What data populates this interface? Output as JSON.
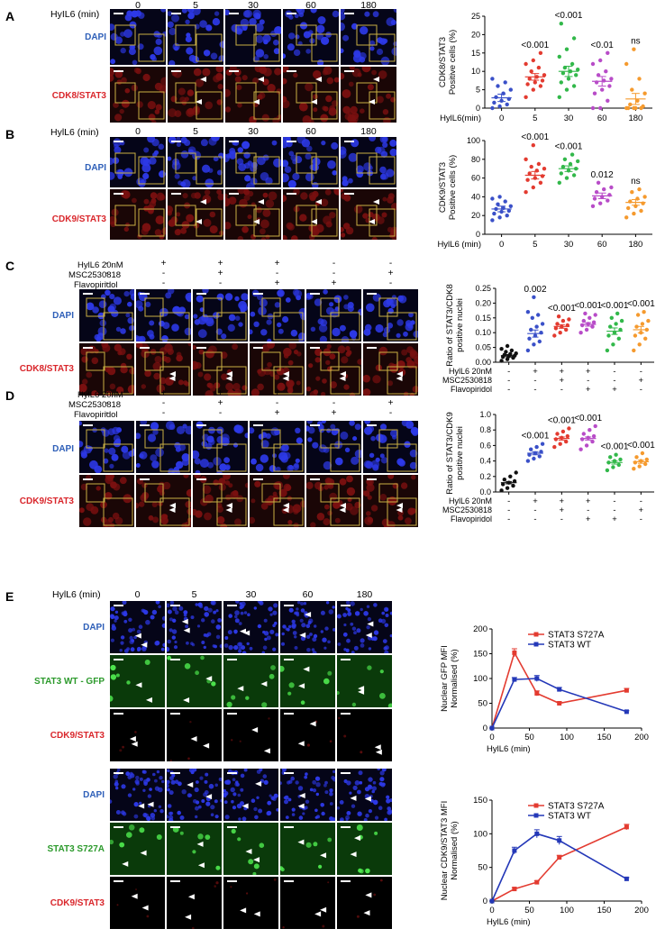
{
  "panels": {
    "A": {
      "letter": "A",
      "time_axis_label": "HyIL6 (min)",
      "times": [
        "0",
        "5",
        "30",
        "60",
        "180"
      ],
      "rows": [
        {
          "label": "DAPI",
          "color": "#2e5fb8",
          "kind": "blue"
        },
        {
          "label": "CDK8/STAT3",
          "color": "#d9262b",
          "kind": "red"
        }
      ],
      "chart_data": {
        "type": "scatter",
        "title": "",
        "ylabel": "CDK8/STAT3 Positive cells (%)",
        "ylabel_lines": [
          "CDK8/STAT3",
          "Positive cells (%)"
        ],
        "xlabel": "HylL6(min)",
        "categories": [
          "0",
          "5",
          "30",
          "60",
          "180"
        ],
        "ylim": [
          0,
          25
        ],
        "yticks": [
          0,
          5,
          10,
          15,
          20,
          25
        ],
        "colors": [
          "#3a50c8",
          "#e33b30",
          "#32b84a",
          "#b84cc8",
          "#f59a2e"
        ],
        "means": [
          2.8,
          8.5,
          10,
          7.3,
          2.5
        ],
        "sem": [
          1.0,
          0.9,
          1.4,
          1.3,
          1.5
        ],
        "points": [
          [
            0,
            0.5,
            1,
            1.5,
            2,
            2.5,
            3,
            4,
            5,
            6,
            7,
            8
          ],
          [
            3,
            5,
            6,
            6.5,
            7,
            7.5,
            8,
            8.5,
            9,
            10,
            11,
            12,
            13,
            15
          ],
          [
            3,
            5,
            6,
            7,
            8,
            9,
            9.5,
            10,
            10.5,
            11,
            12,
            14,
            16,
            19,
            23
          ],
          [
            0,
            0,
            2,
            4,
            5,
            6,
            7,
            7.5,
            8,
            9,
            10,
            12,
            13,
            15
          ],
          [
            0,
            0,
            0,
            0,
            0,
            0.5,
            1,
            2,
            4,
            5,
            8,
            12,
            16
          ]
        ],
        "annotations": [
          "",
          "<0.001",
          "<0.001",
          "<0.01",
          "ns"
        ]
      }
    },
    "B": {
      "letter": "B",
      "time_axis_label": "HylL6 (min)",
      "times": [
        "0",
        "5",
        "30",
        "60",
        "180"
      ],
      "rows": [
        {
          "label": "DAPI",
          "color": "#2e5fb8",
          "kind": "blue"
        },
        {
          "label": "CDK9/STAT3",
          "color": "#d9262b",
          "kind": "red"
        }
      ],
      "chart_data": {
        "type": "scatter",
        "title": "",
        "ylabel": "CDK9/STAT3 Positive cells (%)",
        "ylabel_lines": [
          "CDK9/STAT3",
          "Positive cells (%)"
        ],
        "xlabel": "HylL6 (min)",
        "categories": [
          "0",
          "5",
          "30",
          "60",
          "180"
        ],
        "ylim": [
          0,
          100
        ],
        "yticks": [
          0,
          20,
          40,
          60,
          80,
          100
        ],
        "colors": [
          "#3a50c8",
          "#e33b30",
          "#32b84a",
          "#b84cc8",
          "#f59a2e"
        ],
        "means": [
          27,
          63,
          70,
          41,
          34
        ],
        "sem": [
          3,
          4,
          3,
          3,
          3
        ],
        "points": [
          [
            15,
            18,
            20,
            22,
            24,
            25,
            27,
            28,
            30,
            32,
            35,
            38,
            40
          ],
          [
            45,
            50,
            55,
            58,
            60,
            62,
            65,
            68,
            70,
            72,
            75,
            80,
            95
          ],
          [
            55,
            60,
            63,
            65,
            68,
            70,
            72,
            75,
            78,
            80,
            85
          ],
          [
            30,
            33,
            36,
            38,
            40,
            42,
            45,
            48,
            50,
            55
          ],
          [
            18,
            22,
            25,
            28,
            30,
            33,
            35,
            38,
            40,
            45,
            48
          ]
        ],
        "annotations": [
          "",
          "<0.001",
          "<0.001",
          "0.012",
          "ns"
        ]
      }
    },
    "C": {
      "letter": "C",
      "treatments": [
        "HylL6 20nM",
        "MSC2530818",
        "Flavopiridol"
      ],
      "signs": [
        [
          "-",
          "+",
          "+",
          "+",
          "-",
          "-"
        ],
        [
          "-",
          "-",
          "+",
          "-",
          "-",
          "+"
        ],
        [
          "-",
          "-",
          "-",
          "+",
          "+",
          "-"
        ]
      ],
      "rows": [
        {
          "label": "DAPI",
          "color": "#2e5fb8",
          "kind": "blue"
        },
        {
          "label": "CDK8/STAT3",
          "color": "#d9262b",
          "kind": "red"
        }
      ],
      "chart_data": {
        "type": "scatter",
        "title": "",
        "ylabel": "Ratio of STAT3/CDK8 positive nuclei",
        "ylabel_lines": [
          "Ratio of STAT3/CDK8",
          "positive nuclei"
        ],
        "categories": [
          "1",
          "2",
          "3",
          "4",
          "5",
          "6"
        ],
        "ylim": [
          0,
          0.25
        ],
        "yticks": [
          "0.00",
          "0.05",
          "0.10",
          "0.15",
          "0.20",
          "0.25"
        ],
        "yvals": [
          0,
          0.05,
          0.1,
          0.15,
          0.2,
          0.25
        ],
        "colors": [
          "#111111",
          "#3a50c8",
          "#e33b30",
          "#b84cc8",
          "#32b84a",
          "#f59a2e"
        ],
        "means": [
          0.022,
          0.097,
          0.121,
          0.128,
          0.105,
          0.11
        ],
        "sem": [
          0.004,
          0.012,
          0.006,
          0.006,
          0.011,
          0.011
        ],
        "points": [
          [
            0.005,
            0.01,
            0.015,
            0.018,
            0.02,
            0.022,
            0.025,
            0.028,
            0.03,
            0.035,
            0.04,
            0.045,
            0.055
          ],
          [
            0.04,
            0.06,
            0.07,
            0.08,
            0.09,
            0.1,
            0.11,
            0.12,
            0.13,
            0.15,
            0.16,
            0.17,
            0.22
          ],
          [
            0.09,
            0.1,
            0.11,
            0.115,
            0.12,
            0.125,
            0.13,
            0.14,
            0.145,
            0.155
          ],
          [
            0.1,
            0.11,
            0.12,
            0.125,
            0.13,
            0.135,
            0.14,
            0.15,
            0.16,
            0.165
          ],
          [
            0.04,
            0.06,
            0.08,
            0.09,
            0.1,
            0.11,
            0.12,
            0.13,
            0.14,
            0.15,
            0.165
          ],
          [
            0.04,
            0.06,
            0.08,
            0.09,
            0.1,
            0.11,
            0.12,
            0.13,
            0.14,
            0.16,
            0.17
          ]
        ],
        "annotations": [
          "",
          "0.002",
          "<0.001",
          "<0.001",
          "<0.001",
          "<0.001"
        ],
        "x_table": [
          [
            "-",
            "+",
            "+",
            "+",
            "-",
            "-"
          ],
          [
            "-",
            "-",
            "+",
            "-",
            "-",
            "+"
          ],
          [
            "-",
            "-",
            "-",
            "+",
            "+",
            "-"
          ]
        ],
        "x_table_labels": [
          "HylL6 20nM",
          "MSC2530818",
          "Flavopiridol"
        ]
      }
    },
    "D": {
      "letter": "D",
      "treatments": [
        "HylL6 20nM",
        "MSC2530818",
        "Flavopiridol"
      ],
      "signs": [
        [
          "-",
          "+",
          "+",
          "+",
          "-",
          "-"
        ],
        [
          "-",
          "-",
          "+",
          "-",
          "-",
          "+"
        ],
        [
          "-",
          "-",
          "-",
          "+",
          "+",
          "-"
        ]
      ],
      "rows": [
        {
          "label": "DAPI",
          "color": "#2e5fb8",
          "kind": "blue"
        },
        {
          "label": "CDK9/STAT3",
          "color": "#d9262b",
          "kind": "red"
        }
      ],
      "chart_data": {
        "type": "scatter",
        "title": "",
        "ylabel": "Ratio of STAT3/CDK9 positive nuclei",
        "ylabel_lines": [
          "Ratio of STAT3/CDK9",
          "positive nuclei"
        ],
        "categories": [
          "1",
          "2",
          "3",
          "4",
          "5",
          "6"
        ],
        "ylim": [
          0,
          1.0
        ],
        "yticks": [
          "0.0",
          "0.2",
          "0.4",
          "0.6",
          "0.8",
          "1.0"
        ],
        "yvals": [
          0,
          0.2,
          0.4,
          0.6,
          0.8,
          1.0
        ],
        "colors": [
          "#111111",
          "#3a50c8",
          "#e33b30",
          "#b84cc8",
          "#32b84a",
          "#f59a2e"
        ],
        "means": [
          0.12,
          0.5,
          0.69,
          0.69,
          0.38,
          0.39
        ],
        "sem": [
          0.015,
          0.02,
          0.02,
          0.02,
          0.02,
          0.02
        ],
        "points": [
          [
            0.02,
            0.05,
            0.08,
            0.1,
            0.12,
            0.14,
            0.16,
            0.2,
            0.25
          ],
          [
            0.4,
            0.43,
            0.46,
            0.48,
            0.5,
            0.52,
            0.55,
            0.58,
            0.62
          ],
          [
            0.58,
            0.62,
            0.65,
            0.68,
            0.7,
            0.72,
            0.75,
            0.78,
            0.82
          ],
          [
            0.55,
            0.6,
            0.65,
            0.68,
            0.7,
            0.72,
            0.75,
            0.8,
            0.85
          ],
          [
            0.28,
            0.32,
            0.35,
            0.38,
            0.4,
            0.42,
            0.45,
            0.48
          ],
          [
            0.3,
            0.33,
            0.36,
            0.38,
            0.4,
            0.42,
            0.45,
            0.5
          ]
        ],
        "annotations": [
          "",
          "<0.001",
          "<0.001",
          "<0.001",
          "<0.001",
          "<0.001"
        ],
        "x_table": [
          [
            "-",
            "+",
            "+",
            "+",
            "-",
            "-"
          ],
          [
            "-",
            "-",
            "+",
            "-",
            "-",
            "+"
          ],
          [
            "-",
            "-",
            "-",
            "+",
            "+",
            "-"
          ]
        ],
        "x_table_labels": [
          "HylL6 20nM",
          "MSC2530818",
          "Flavopiridol"
        ]
      }
    },
    "E": {
      "letter": "E",
      "time_axis_label": "HylL6 (min)",
      "times": [
        "0",
        "5",
        "30",
        "60",
        "180"
      ],
      "rows": [
        {
          "label": "DAPI",
          "color": "#2e5fb8",
          "kind": "blue"
        },
        {
          "label": "STAT3 WT - GFP",
          "color": "#2c9a2c",
          "kind": "green"
        },
        {
          "label": "CDK9/STAT3",
          "color": "#d9262b",
          "kind": "black"
        },
        {
          "label": "DAPI",
          "color": "#2e5fb8",
          "kind": "blue"
        },
        {
          "label": "STAT3 S727A",
          "color": "#2c9a2c",
          "kind": "green"
        },
        {
          "label": "CDK9/STAT3",
          "color": "#d9262b",
          "kind": "black"
        }
      ],
      "charts": [
        {
          "type": "line",
          "title": "",
          "ylabel": "Nuclear GFP MFI Normalised (%)",
          "ylabel_lines": [
            "Nuclear GFP MFI",
            "Normalised (%)"
          ],
          "xlabel": "HylL6 (min)",
          "xlim": [
            0,
            200
          ],
          "xticks": [
            0,
            50,
            100,
            150,
            200
          ],
          "ylim": [
            0,
            200
          ],
          "yticks": [
            0,
            50,
            100,
            150,
            200
          ],
          "series": [
            {
              "name": "STAT3 S727A",
              "color": "#e33b30",
              "x": [
                0,
                30,
                60,
                90,
                180
              ],
              "y": [
                0,
                152,
                70,
                50,
                76
              ],
              "err": [
                0,
                8,
                5,
                3,
                4
              ]
            },
            {
              "name": "STAT3 WT",
              "color": "#2438b8",
              "x": [
                0,
                30,
                60,
                90,
                180
              ],
              "y": [
                0,
                98,
                100,
                78,
                33
              ],
              "err": [
                0,
                4,
                6,
                4,
                2
              ]
            }
          ]
        },
        {
          "type": "line",
          "title": "",
          "ylabel": "Nuclear CDK9/STAT3 MFI Normalised (%)",
          "ylabel_lines": [
            "Nuclear CDK9/STAT3 MFI",
            "Normalised (%)"
          ],
          "xlabel": "HylL6 (min)",
          "xlim": [
            0,
            200
          ],
          "xticks": [
            0,
            50,
            100,
            150,
            200
          ],
          "ylim": [
            0,
            150
          ],
          "yticks": [
            0,
            50,
            100,
            150
          ],
          "series": [
            {
              "name": "STAT3 S727A",
              "color": "#e33b30",
              "x": [
                0,
                30,
                60,
                90,
                180
              ],
              "y": [
                0,
                18,
                28,
                65,
                110
              ],
              "err": [
                0,
                2,
                2,
                3,
                4
              ]
            },
            {
              "name": "STAT3 WT",
              "color": "#2438b8",
              "x": [
                0,
                30,
                60,
                90,
                180
              ],
              "y": [
                0,
                75,
                100,
                90,
                33
              ],
              "err": [
                0,
                5,
                6,
                6,
                2
              ]
            }
          ]
        }
      ]
    }
  }
}
